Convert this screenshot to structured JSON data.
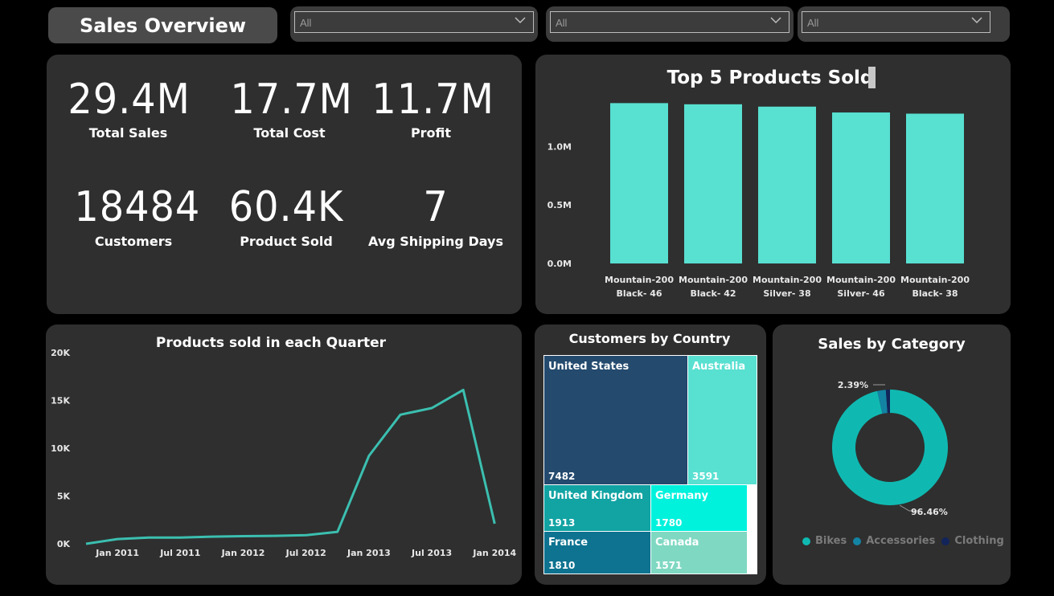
{
  "header": {
    "title": "Sales Overview"
  },
  "filters": [
    {
      "value": "All"
    },
    {
      "value": "All"
    },
    {
      "value": "All"
    }
  ],
  "kpis": [
    {
      "value": "29.4M",
      "label": "Total Sales"
    },
    {
      "value": "17.7M",
      "label": "Total Cost"
    },
    {
      "value": "11.7M",
      "label": "Profit"
    },
    {
      "value": "18484",
      "label": "Customers"
    },
    {
      "value": "60.4K",
      "label": "Product Sold"
    },
    {
      "value": "7",
      "label": "Avg Shipping Days"
    }
  ],
  "colors": {
    "teal": "#58e0d1",
    "line": "#3bbfb0",
    "panel": "#2f2f2f"
  },
  "chart_data": [
    {
      "type": "bar",
      "title": "Top 5 Products Sold",
      "categories": [
        [
          "Mountain-200",
          "Black- 46"
        ],
        [
          "Mountain-200",
          "Black- 42"
        ],
        [
          "Mountain-200",
          "Silver- 38"
        ],
        [
          "Mountain-200",
          "Silver- 46"
        ],
        [
          "Mountain-200",
          "Black- 38"
        ]
      ],
      "values": [
        1.37,
        1.36,
        1.34,
        1.29,
        1.28
      ],
      "unit": "M",
      "yticks": [
        "0.0M",
        "0.5M",
        "1.0M"
      ],
      "ylim": [
        0,
        1.4
      ]
    },
    {
      "type": "line",
      "title": "Products sold in each Quarter",
      "x": [
        "2010 Q4",
        "2011 Q1",
        "2011 Q2",
        "2011 Q3",
        "2011 Q4",
        "2012 Q1",
        "2012 Q2",
        "2012 Q3",
        "2012 Q4",
        "2013 Q1",
        "2013 Q2",
        "2013 Q3",
        "2013 Q4",
        "2014 Q1"
      ],
      "values": [
        0,
        500,
        650,
        650,
        750,
        800,
        830,
        900,
        1250,
        9200,
        13500,
        14200,
        16100,
        2100
      ],
      "xticks": [
        "Jan 2011",
        "Jul 2011",
        "Jan 2012",
        "Jul 2012",
        "Jan 2013",
        "Jul 2013",
        "Jan 2014"
      ],
      "yticks": [
        "0K",
        "5K",
        "10K",
        "15K",
        "20K"
      ],
      "ylim": [
        0,
        20000
      ]
    },
    {
      "type": "treemap",
      "title": "Customers by Country",
      "items": [
        {
          "name": "United States",
          "value": "7482"
        },
        {
          "name": "Australia",
          "value": "3591"
        },
        {
          "name": "United Kingdom",
          "value": "1913"
        },
        {
          "name": "Germany",
          "value": "1780"
        },
        {
          "name": "France",
          "value": "1810"
        },
        {
          "name": "Canada",
          "value": "1571"
        }
      ]
    },
    {
      "type": "pie",
      "title": "Sales by Category",
      "slices": [
        {
          "name": "Bikes",
          "value": 96.46,
          "label": "96.46%",
          "color": "#0fb9b1"
        },
        {
          "name": "Accessories",
          "value": 2.39,
          "label": "2.39%",
          "color": "#1383a3"
        },
        {
          "name": "Clothing",
          "value": 1.15,
          "label": "",
          "color": "#12245a"
        }
      ]
    }
  ]
}
